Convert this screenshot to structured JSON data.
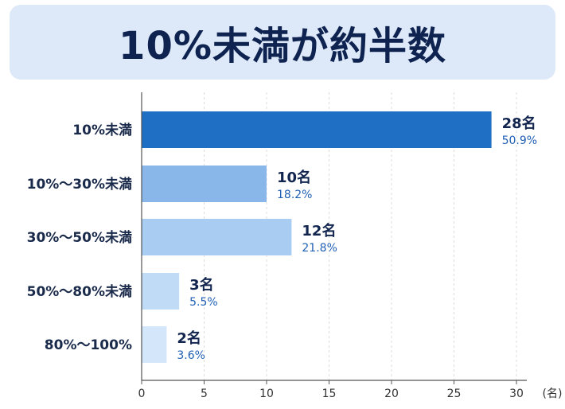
{
  "title": "10%未満が約半数",
  "chart_data": {
    "type": "bar",
    "orientation": "horizontal",
    "categories": [
      "10%未満",
      "10%～30%未満",
      "30%～50%未満",
      "50%～80%未満",
      "80%～100%"
    ],
    "values": [
      28,
      10,
      12,
      3,
      2
    ],
    "value_labels": [
      "28名",
      "10名",
      "12名",
      "3名",
      "2名"
    ],
    "percent_labels": [
      "50.9%",
      "18.2%",
      "21.8%",
      "5.5%",
      "3.6%"
    ],
    "bar_colors": [
      "#1f6fc4",
      "#8ab7ea",
      "#a9cdf2",
      "#bfdbf6",
      "#d3e6fa"
    ],
    "xlim": [
      0,
      30
    ],
    "xticks": [
      0,
      5,
      10,
      15,
      20,
      25,
      30
    ],
    "xunit": "(名)",
    "grid": true
  }
}
